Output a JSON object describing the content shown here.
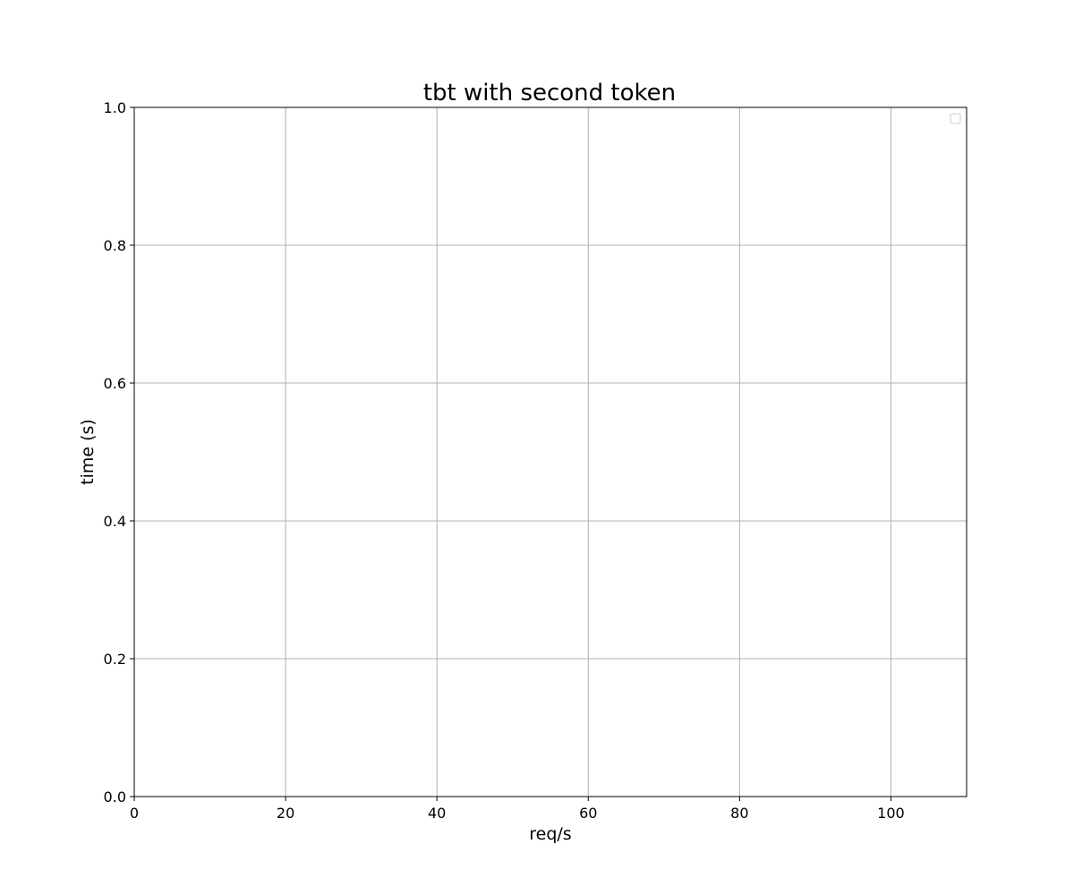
{
  "chart_data": {
    "type": "line",
    "title": "tbt with second token",
    "xlabel": "req/s",
    "ylabel": "time (s)",
    "xlim": [
      0,
      110
    ],
    "ylim": [
      0,
      1.0
    ],
    "x_ticks": [
      0,
      20,
      40,
      60,
      80,
      100
    ],
    "x_tick_labels": [
      "0",
      "20",
      "40",
      "60",
      "80",
      "100"
    ],
    "y_ticks": [
      0,
      0.2,
      0.4,
      0.6,
      0.8,
      1.0
    ],
    "y_tick_labels": [
      "0.0",
      "0.2",
      "0.4",
      "0.6",
      "0.8",
      "1.0"
    ],
    "grid": true,
    "legend": {
      "placement": "upper right",
      "entries": []
    },
    "series": []
  },
  "colors": {
    "background": "#ffffff",
    "grid": "#b0b0b0",
    "axes": "#000000",
    "legend_border": "#cccccc"
  }
}
